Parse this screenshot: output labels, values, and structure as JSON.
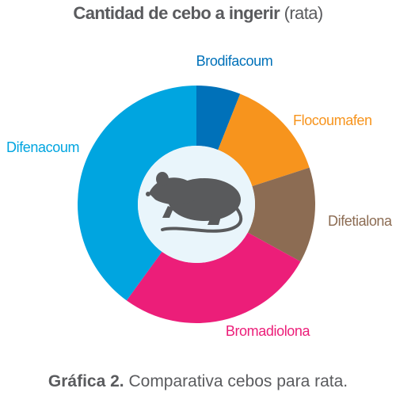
{
  "title": {
    "bold": "Cantidad de cebo a ingerir",
    "light": "(rata)"
  },
  "caption": {
    "bold": "Gráfica 2.",
    "text": "Comparativa cebos para rata."
  },
  "chart_data": {
    "type": "pie",
    "title": "Cantidad de cebo a ingerir (rata)",
    "categories": [
      "Brodifacoum",
      "Flocoumafen",
      "Difetialona",
      "Bromadiolona",
      "Difenacoum"
    ],
    "values": [
      6,
      14,
      13,
      27,
      40
    ],
    "colors": [
      "#0071b9",
      "#f7941d",
      "#8c6c53",
      "#ec1e79",
      "#00a5e0"
    ],
    "legend": "none"
  },
  "center_icon": "rat-icon",
  "colors": {
    "text": "#5a5b5e",
    "center": "#e9f5fb",
    "rat": "#595a5c"
  }
}
